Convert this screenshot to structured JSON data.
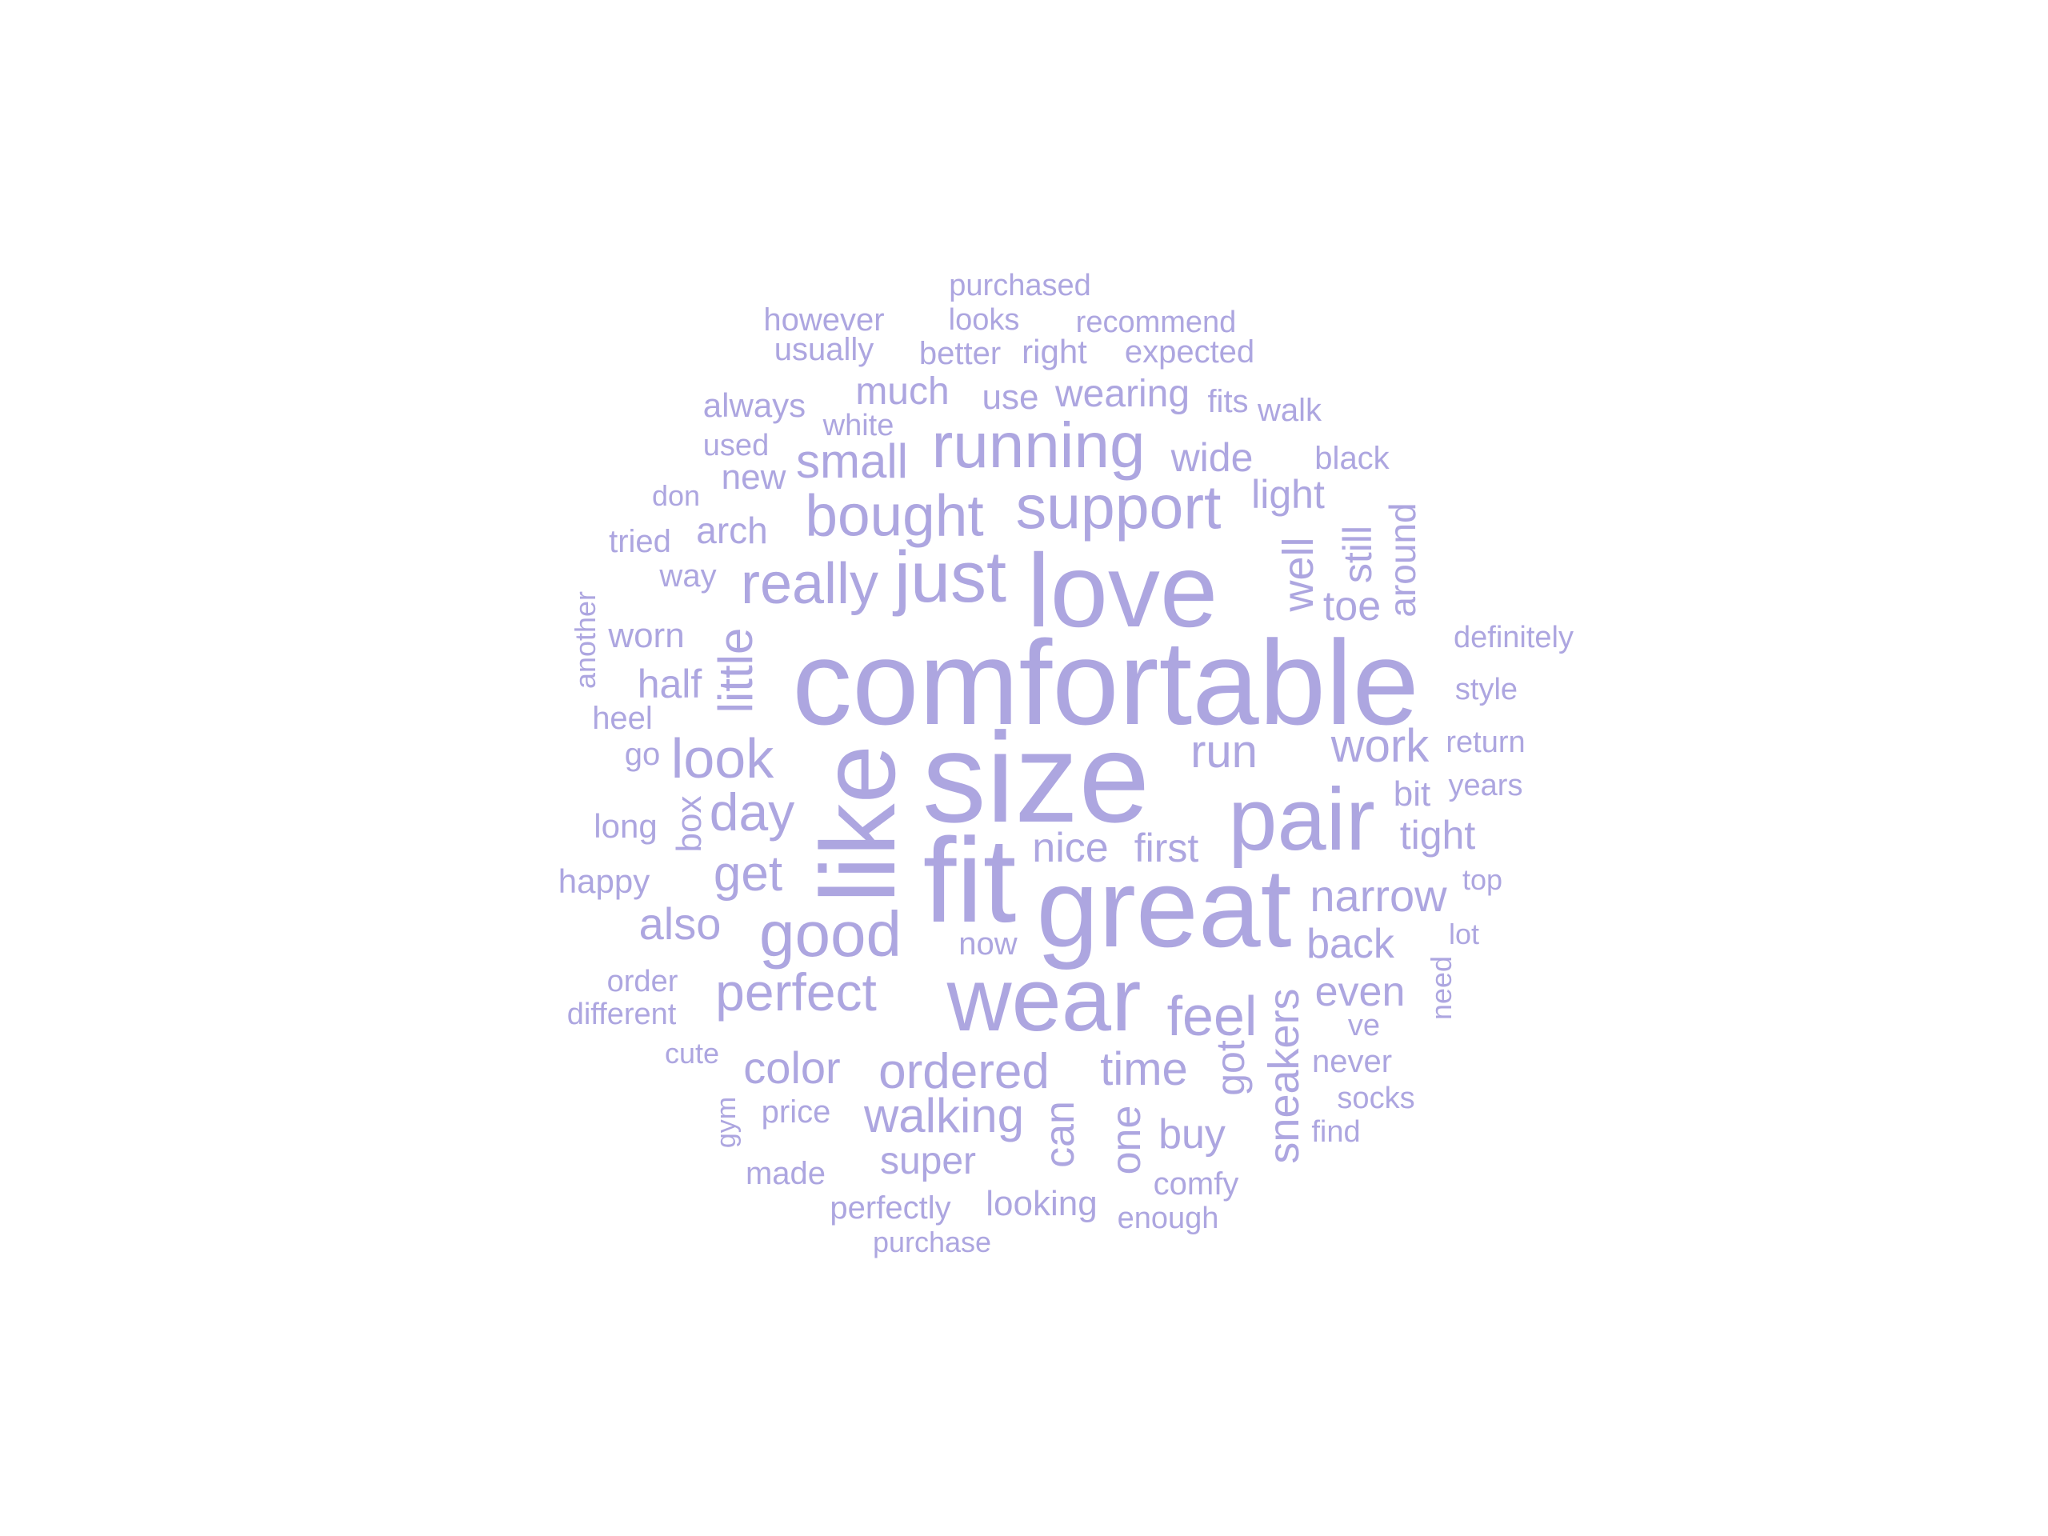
{
  "color": "#ada6e0",
  "words": [
    "comfortable",
    "size",
    "like",
    "fit",
    "great",
    "pair",
    "love",
    "wear",
    "just",
    "running",
    "support",
    "bought",
    "really",
    "good",
    "look",
    "perfect",
    "feel",
    "ordered",
    "walking",
    "narrow",
    "small",
    "little",
    "work",
    "well",
    "day",
    "get",
    "time",
    "run",
    "back",
    "sneakers",
    "color",
    "also",
    "nice",
    "first",
    "can",
    "one",
    "tight",
    "even",
    "toe",
    "light",
    "wide",
    "buy",
    "got",
    "half",
    "still",
    "around",
    "wearing",
    "much",
    "super",
    "arch",
    "worn",
    "look ing",
    "bit",
    "use",
    "purchased",
    "however",
    "looks",
    "recommend",
    "usually",
    "better",
    "right",
    "expected",
    "always",
    "fits",
    "walk",
    "white",
    "used",
    "black",
    "new",
    "don",
    "tried",
    "way",
    "another",
    "definitely",
    "heel",
    "style",
    "return",
    "years",
    "go",
    "long",
    "box",
    "happy",
    "top",
    "now",
    "lot",
    "order",
    "need",
    "different",
    "ve",
    "cute",
    "never",
    "socks",
    "price",
    "gym",
    "find",
    "made",
    "comfy",
    "perfectly",
    "enough",
    "purchase"
  ]
}
